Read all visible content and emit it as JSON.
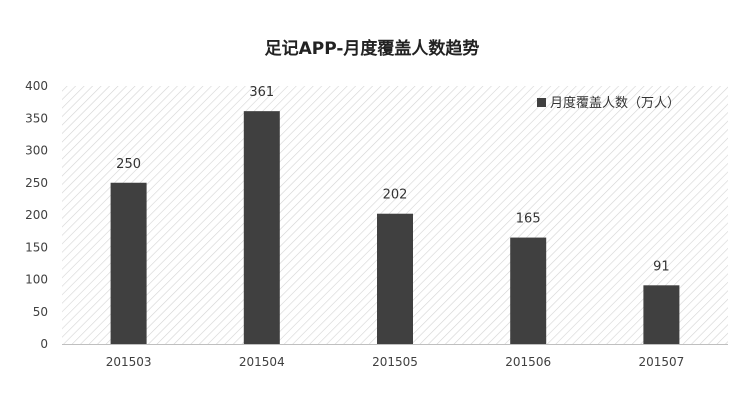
{
  "chart_data": {
    "type": "bar",
    "title": "足记APP-月度覆盖人数趋势",
    "categories": [
      "201503",
      "201504",
      "201505",
      "201506",
      "201507"
    ],
    "series": [
      {
        "name": "月度覆盖人数（万人）",
        "values": [
          250,
          361,
          202,
          165,
          91
        ]
      }
    ],
    "ylim": [
      0,
      400
    ],
    "yticks": [
      0,
      50,
      100,
      150,
      200,
      250,
      300,
      350,
      400
    ],
    "data_labels": true,
    "legend": "top-right",
    "grid": false,
    "colors": {
      "bar": "#404040",
      "background_hatch": "#d0d0d0"
    }
  }
}
